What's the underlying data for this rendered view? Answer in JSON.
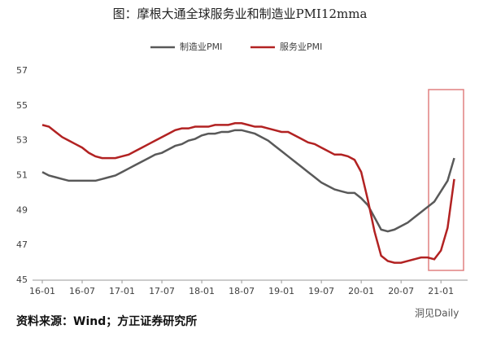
{
  "chart_data": {
    "type": "line",
    "title": "图：摩根大通全球服务业和制造业PMI12mma",
    "categories": [
      "16-01",
      null,
      null,
      null,
      null,
      null,
      "16-07",
      null,
      null,
      null,
      null,
      null,
      "17-01",
      null,
      null,
      null,
      null,
      null,
      "17-07",
      null,
      null,
      null,
      null,
      null,
      "18-01",
      null,
      null,
      null,
      null,
      null,
      "18-07",
      null,
      null,
      null,
      null,
      null,
      "19-01",
      null,
      null,
      null,
      null,
      null,
      "19-07",
      null,
      null,
      null,
      null,
      null,
      "20-01",
      null,
      null,
      null,
      null,
      null,
      "20-07",
      null,
      null,
      null,
      null,
      null,
      "21-01",
      null,
      null
    ],
    "series": [
      {
        "name": "制造业PMI",
        "color": "#595959",
        "values": [
          51.2,
          51.0,
          50.9,
          50.8,
          50.7,
          50.7,
          50.7,
          50.7,
          50.7,
          50.8,
          50.9,
          51.0,
          51.2,
          51.4,
          51.6,
          51.8,
          52.0,
          52.2,
          52.3,
          52.5,
          52.7,
          52.8,
          53.0,
          53.1,
          53.3,
          53.4,
          53.4,
          53.5,
          53.5,
          53.6,
          53.6,
          53.5,
          53.4,
          53.2,
          53.0,
          52.7,
          52.4,
          52.1,
          51.8,
          51.5,
          51.2,
          50.9,
          50.6,
          50.4,
          50.2,
          50.1,
          50.0,
          50.0,
          49.7,
          49.3,
          48.6,
          47.9,
          47.8,
          47.9,
          48.1,
          48.3,
          48.6,
          48.9,
          49.2,
          49.5,
          50.1,
          50.7,
          52.0
        ]
      },
      {
        "name": "服务业PMI",
        "color": "#b22222",
        "values": [
          53.9,
          53.8,
          53.5,
          53.2,
          53.0,
          52.8,
          52.6,
          52.3,
          52.1,
          52.0,
          52.0,
          52.0,
          52.1,
          52.2,
          52.4,
          52.6,
          52.8,
          53.0,
          53.2,
          53.4,
          53.6,
          53.7,
          53.7,
          53.8,
          53.8,
          53.8,
          53.9,
          53.9,
          53.9,
          54.0,
          54.0,
          53.9,
          53.8,
          53.8,
          53.7,
          53.6,
          53.5,
          53.5,
          53.3,
          53.1,
          52.9,
          52.8,
          52.6,
          52.4,
          52.2,
          52.2,
          52.1,
          51.9,
          51.2,
          49.6,
          47.8,
          46.4,
          46.1,
          46.0,
          46.0,
          46.1,
          46.2,
          46.3,
          46.3,
          46.2,
          46.7,
          48.0,
          50.8
        ]
      }
    ],
    "ylim": [
      45,
      57
    ],
    "yticks": [
      45,
      47,
      49,
      51,
      53,
      55,
      57
    ],
    "grid": false,
    "source": "资料来源：Wind；方正证券研究所",
    "watermark": "洞见Daily"
  }
}
